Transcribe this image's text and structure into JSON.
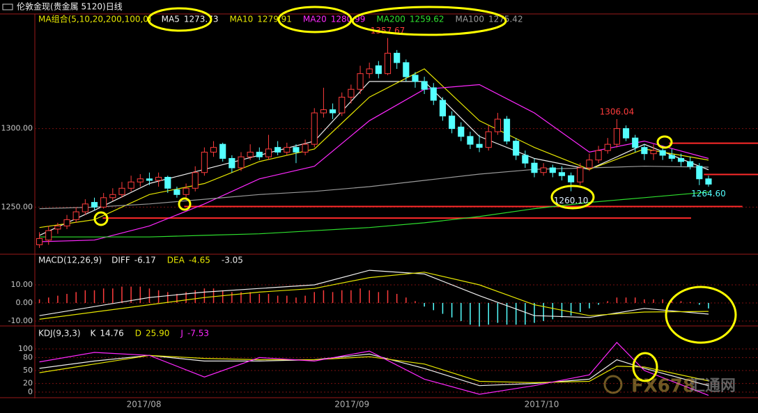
{
  "window_title": "伦敦金现(贵金属 5120)日线",
  "watermark": {
    "logo": "FX678",
    "name": "汇通网"
  },
  "chart_data": [
    {
      "type": "candlestick",
      "title": "MA组合(5,10,20,200,100,0)",
      "xlim": [
        -0.5,
        78.4
      ],
      "xticks": [
        {
          "value": 11.4,
          "label": "2017/08"
        },
        {
          "value": 34.1,
          "label": "2017/09"
        },
        {
          "value": 54.8,
          "label": "2017/10"
        }
      ],
      "ylim": [
        1220,
        1373
      ],
      "yticks": [
        {
          "value": 1250,
          "label": "1250.00"
        },
        {
          "value": 1300,
          "label": "1300.00"
        }
      ],
      "grid": true,
      "up_color": "#ff3c3c",
      "down_color": "#54ffff",
      "candles": {
        "open": [
          1226,
          1229,
          1236,
          1238,
          1242,
          1247,
          1253,
          1250,
          1256,
          1258,
          1262,
          1266,
          1268,
          1267,
          1269,
          1261,
          1258,
          1262,
          1272,
          1285,
          1290,
          1281,
          1275,
          1282,
          1285,
          1282,
          1288,
          1285,
          1288,
          1285,
          1290,
          1310,
          1312,
          1310,
          1320,
          1325,
          1335,
          1340,
          1335,
          1348,
          1342,
          1334,
          1330,
          1326,
          1318,
          1308,
          1301,
          1295,
          1290,
          1288,
          1298,
          1306,
          1292,
          1283,
          1278,
          1272,
          1275,
          1272,
          1270,
          1266,
          1275,
          1280,
          1286,
          1290,
          1300,
          1294,
          1288,
          1284,
          1286,
          1283,
          1281,
          1279,
          1276,
          1268
        ],
        "high": [
          1234,
          1238,
          1240,
          1245,
          1250,
          1255,
          1256,
          1259,
          1262,
          1266,
          1270,
          1271,
          1272,
          1272,
          1270,
          1263,
          1265,
          1276,
          1288,
          1292,
          1291,
          1283,
          1285,
          1290,
          1288,
          1296,
          1292,
          1291,
          1290,
          1293,
          1313,
          1326,
          1316,
          1323,
          1328,
          1340,
          1342,
          1343,
          1357.67,
          1350,
          1344,
          1336,
          1333,
          1329,
          1320,
          1311,
          1304,
          1298,
          1296,
          1302,
          1310,
          1308,
          1294,
          1286,
          1281,
          1278,
          1277,
          1276,
          1272,
          1278,
          1284,
          1289,
          1294,
          1306.04,
          1302,
          1296,
          1290,
          1290,
          1289,
          1287,
          1284,
          1282,
          1278,
          1270
        ],
        "low": [
          1224,
          1226,
          1233,
          1236,
          1240,
          1245,
          1248,
          1249,
          1254,
          1256,
          1260,
          1263,
          1264,
          1263,
          1259,
          1256,
          1256,
          1260,
          1270,
          1282,
          1279,
          1272,
          1273,
          1280,
          1280,
          1280,
          1283,
          1283,
          1278,
          1283,
          1288,
          1307,
          1306,
          1308,
          1316,
          1322,
          1332,
          1332,
          1334,
          1338,
          1330,
          1326,
          1322,
          1315,
          1305,
          1297,
          1292,
          1287,
          1285,
          1286,
          1296,
          1290,
          1280,
          1275,
          1269,
          1270,
          1269,
          1267,
          1260.1,
          1264,
          1273,
          1278,
          1284,
          1288,
          1292,
          1285,
          1280,
          1280,
          1280,
          1279,
          1276,
          1274,
          1264,
          1263
        ],
        "close": [
          1230,
          1235,
          1238,
          1242,
          1247,
          1252,
          1250,
          1256,
          1258,
          1262,
          1266,
          1268,
          1267,
          1269,
          1262,
          1258,
          1262,
          1272,
          1285,
          1288,
          1281,
          1275,
          1282,
          1285,
          1282,
          1287,
          1285,
          1288,
          1285,
          1290,
          1310,
          1312,
          1310,
          1320,
          1325,
          1335,
          1338,
          1335,
          1348,
          1342,
          1333,
          1330,
          1325,
          1318,
          1308,
          1300,
          1295,
          1290,
          1288,
          1298,
          1306,
          1292,
          1283,
          1278,
          1272,
          1275,
          1272,
          1270,
          1266,
          1275,
          1280,
          1286,
          1290,
          1300,
          1294,
          1288,
          1284,
          1286,
          1283,
          1281,
          1279,
          1276,
          1268,
          1264.6
        ]
      },
      "series": [
        {
          "name": "MA5",
          "color": "#f0f0f0",
          "x": [
            0,
            6,
            12,
            18,
            24,
            30,
            36,
            42,
            48,
            54,
            60,
            66,
            73
          ],
          "values": [
            1232,
            1248,
            1265,
            1274,
            1283,
            1292,
            1330,
            1330,
            1295,
            1281,
            1274,
            1290,
            1273.73
          ]
        },
        {
          "name": "MA10",
          "color": "#e6e600",
          "x": [
            0,
            6,
            12,
            18,
            24,
            30,
            36,
            42,
            48,
            54,
            60,
            66,
            73
          ],
          "values": [
            1237,
            1242,
            1258,
            1265,
            1279,
            1287,
            1320,
            1338,
            1305,
            1288,
            1274,
            1287,
            1279.91
          ]
        },
        {
          "name": "MA20",
          "color": "#ff28ff",
          "x": [
            0,
            6,
            12,
            18,
            24,
            30,
            36,
            42,
            48,
            54,
            60,
            66,
            73
          ],
          "values": [
            1228,
            1229,
            1238,
            1252,
            1268,
            1276,
            1305,
            1325,
            1328,
            1310,
            1285,
            1292,
            1280.99
          ]
        },
        {
          "name": "MA200",
          "color": "#2ee02e",
          "x": [
            0,
            6,
            12,
            18,
            24,
            30,
            36,
            42,
            48,
            54,
            60,
            66,
            73
          ],
          "values": [
            1231,
            1231,
            1231,
            1232,
            1233,
            1235,
            1237,
            1240,
            1244,
            1249,
            1253,
            1256,
            1259.62
          ]
        },
        {
          "name": "MA100",
          "color": "#9a9a9a",
          "x": [
            0,
            6,
            12,
            18,
            24,
            30,
            36,
            42,
            48,
            54,
            60,
            66,
            73
          ],
          "values": [
            1249,
            1250,
            1252,
            1255,
            1258,
            1260,
            1263,
            1267,
            1271,
            1274,
            1275,
            1276,
            1275.42
          ]
        }
      ],
      "levels": [
        {
          "value": 1290.7,
          "from": 68.7,
          "color": "#ff2a2a"
        },
        {
          "value": 1270.8,
          "from": 72.5,
          "color": "#ff2a2a"
        },
        {
          "value": 1250.4,
          "from": 15.8,
          "to": 76.7,
          "color": "#ff2a2a"
        },
        {
          "value": 1243,
          "from": 6.9,
          "to": 71.1,
          "color": "#ff2a2a"
        }
      ],
      "annotations": [
        {
          "x": 38,
          "value": 1357.67,
          "position": "above",
          "color": "#ff3c3c"
        },
        {
          "x": 63,
          "value": 1306.04,
          "position": "above",
          "color": "#ff3c3c"
        },
        {
          "x": 58,
          "value": {
            "value": 1260.1,
            "label": "1260.10"
          },
          "position": "below",
          "color": "#e0f0ff"
        },
        {
          "x": 73,
          "value": {
            "value": 1264.6,
            "label": "1264.60"
          },
          "position": "below",
          "color": "#54ffff"
        }
      ]
    },
    {
      "type": "macd",
      "title": "MACD(12,26,9)",
      "ylim": [
        -12.7,
        26.9
      ],
      "yticks": [
        {
          "value": -10,
          "label": "-10.00"
        },
        {
          "value": 0,
          "label": "0.00"
        },
        {
          "value": 10,
          "label": "10.00"
        }
      ],
      "grid": true,
      "histogram": {
        "up_color": "#ff3c3c",
        "down_color": "#54ffff",
        "legend_color": "#e8e8e8",
        "values": [
          2,
          3,
          4,
          5,
          6,
          7,
          7,
          8,
          8,
          9,
          9,
          9,
          8,
          7,
          6,
          5,
          6,
          7,
          8,
          8,
          7,
          6,
          6,
          6,
          5,
          5,
          4,
          4,
          3,
          4,
          6,
          7,
          6,
          7,
          7,
          8,
          7,
          6,
          7,
          5,
          3,
          1,
          -2,
          -4,
          -6,
          -8,
          -10,
          -12,
          -13,
          -12,
          -11,
          -12,
          -12,
          -12,
          -11,
          -10,
          -9,
          -8,
          -7,
          -5,
          -3,
          -1,
          1,
          3,
          3,
          3,
          2,
          2,
          2,
          1,
          1,
          0.5,
          -1,
          -3.05
        ]
      },
      "series": [
        {
          "name": "DIFF",
          "color": "#f0f0f0",
          "x": [
            0,
            6,
            12,
            18,
            24,
            30,
            36,
            42,
            48,
            54,
            60,
            66,
            73
          ],
          "values": [
            -7,
            -2,
            3,
            6,
            8,
            10,
            18,
            16,
            4,
            -7,
            -8,
            -3,
            -6.17
          ]
        },
        {
          "name": "DEA",
          "color": "#e6e600",
          "x": [
            0,
            6,
            12,
            18,
            24,
            30,
            36,
            42,
            48,
            54,
            60,
            66,
            73
          ],
          "values": [
            -9,
            -5,
            -1,
            3,
            6,
            8,
            14,
            17,
            10,
            -1,
            -7,
            -5,
            -4.65
          ]
        }
      ]
    },
    {
      "type": "kdj",
      "title": "KDJ(9,3,3)",
      "ylim": [
        -11.3,
        150
      ],
      "yticks": [
        0,
        20,
        50,
        80,
        100
      ],
      "grid": true,
      "series": [
        {
          "name": "K",
          "color": "#f0f0f0",
          "x": [
            0,
            6,
            12,
            18,
            24,
            30,
            36,
            42,
            48,
            54,
            60,
            63,
            66,
            73
          ],
          "values": [
            55,
            72,
            85,
            72,
            72,
            75,
            88,
            55,
            15,
            20,
            30,
            75,
            55,
            14.76
          ]
        },
        {
          "name": "D",
          "color": "#e6e600",
          "x": [
            0,
            6,
            12,
            18,
            24,
            30,
            36,
            42,
            48,
            54,
            60,
            63,
            66,
            73
          ],
          "values": [
            45,
            65,
            85,
            78,
            75,
            75,
            82,
            65,
            25,
            22,
            25,
            60,
            58,
            25.9
          ],
          "value_labels": [
            null,
            null,
            null,
            null,
            null,
            null,
            null,
            null,
            null,
            null,
            null,
            null,
            null,
            "25.90"
          ]
        },
        {
          "name": "J",
          "color": "#ff28ff",
          "x": [
            0,
            6,
            12,
            18,
            24,
            30,
            36,
            42,
            48,
            54,
            60,
            63,
            66,
            73
          ],
          "values": [
            70,
            92,
            85,
            35,
            80,
            72,
            95,
            30,
            -5,
            15,
            40,
            115,
            50,
            -7.53
          ]
        }
      ]
    }
  ]
}
